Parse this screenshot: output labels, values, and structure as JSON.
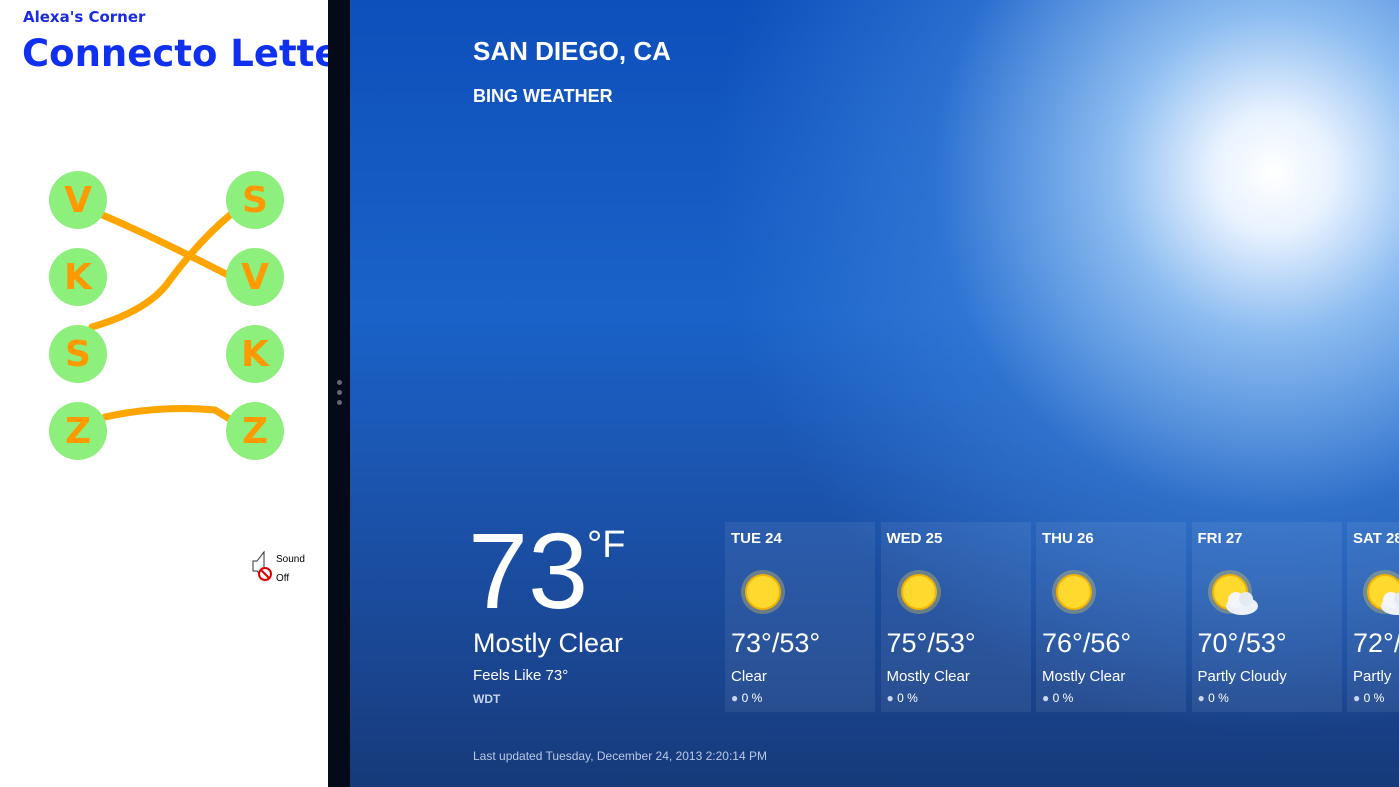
{
  "left_app": {
    "subtitle": "Alexa's Corner",
    "title": "Connecto Letters",
    "left_letters": [
      "V",
      "K",
      "S",
      "Z"
    ],
    "right_letters": [
      "S",
      "V",
      "K",
      "Z"
    ],
    "line_color": "#ffa500",
    "circle_color": "#8ef07c",
    "sound": {
      "line1": "Sound",
      "line2": "Off",
      "icon": "speaker-muted-icon"
    }
  },
  "weather": {
    "city": "SAN DIEGO, CA",
    "app_name": "BING WEATHER",
    "temperature": "73",
    "unit": "°F",
    "condition": "Mostly Clear",
    "feels_like": "Feels Like 73°",
    "station": "WDT",
    "last_updated": "Last updated Tuesday, December 24, 2013 2:20:14 PM",
    "forecast": [
      {
        "day": "TUE 24",
        "temps": "73°/53°",
        "condition": "Clear",
        "precip": "0 %",
        "icon": "sun"
      },
      {
        "day": "WED 25",
        "temps": "75°/53°",
        "condition": "Mostly Clear",
        "precip": "0 %",
        "icon": "sun"
      },
      {
        "day": "THU 26",
        "temps": "76°/56°",
        "condition": "Mostly Clear",
        "precip": "0 %",
        "icon": "sun"
      },
      {
        "day": "FRI 27",
        "temps": "70°/53°",
        "condition": "Partly Cloudy",
        "precip": "0 %",
        "icon": "sun-cloud"
      },
      {
        "day": "SAT 28",
        "temps": "72°/",
        "condition": "Partly",
        "precip": "0 %",
        "icon": "sun-cloud"
      }
    ]
  }
}
